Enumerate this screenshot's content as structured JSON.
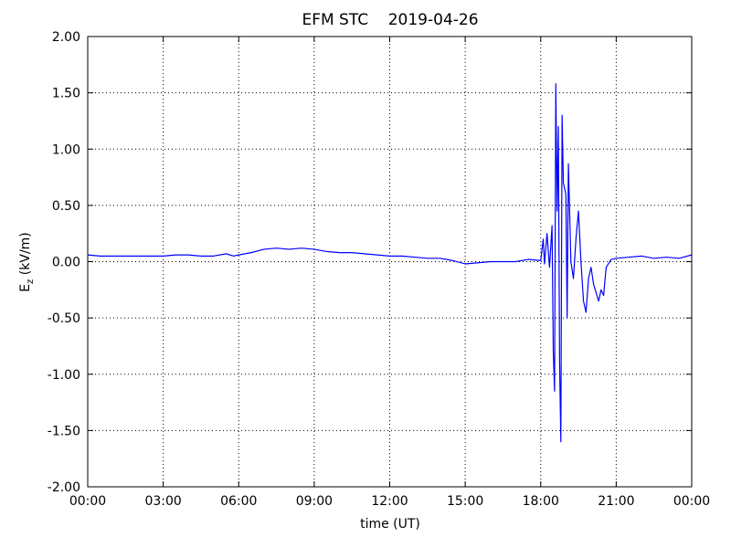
{
  "chart_data": {
    "type": "line",
    "title": "EFM STC    2019-04-26",
    "xlabel": "time (UT)",
    "ylabel": "E",
    "ylabel_sub": "z",
    "ylabel_unit": "(kV/m)",
    "x": [
      0,
      0.5,
      1,
      1.5,
      2,
      2.5,
      3,
      3.5,
      4,
      4.5,
      5,
      5.5,
      5.8,
      6,
      6.5,
      7,
      7.5,
      8,
      8.5,
      9,
      9.5,
      10,
      10.5,
      11,
      11.5,
      12,
      12.5,
      13,
      13.5,
      14,
      14.5,
      15,
      15.5,
      16,
      16.5,
      17,
      17.5,
      18,
      18.1,
      18.15,
      18.25,
      18.35,
      18.45,
      18.5,
      18.55,
      18.6,
      18.65,
      18.7,
      18.75,
      18.8,
      18.85,
      18.9,
      19.0,
      19.05,
      19.1,
      19.2,
      19.3,
      19.4,
      19.5,
      19.6,
      19.7,
      19.8,
      19.9,
      20.0,
      20.1,
      20.3,
      20.4,
      20.5,
      20.6,
      20.8,
      21,
      21.5,
      22,
      22.5,
      23,
      23.5,
      24
    ],
    "series": [
      {
        "name": "Ez",
        "color": "#0000ff",
        "values": [
          0.06,
          0.05,
          0.05,
          0.05,
          0.05,
          0.05,
          0.05,
          0.06,
          0.06,
          0.05,
          0.05,
          0.07,
          0.05,
          0.06,
          0.08,
          0.11,
          0.12,
          0.11,
          0.12,
          0.11,
          0.09,
          0.08,
          0.08,
          0.07,
          0.06,
          0.05,
          0.05,
          0.04,
          0.03,
          0.03,
          0.01,
          -0.02,
          -0.01,
          0.0,
          0.0,
          0.0,
          0.02,
          0.01,
          0.2,
          -0.02,
          0.25,
          -0.05,
          0.32,
          -0.8,
          -1.15,
          1.58,
          0.45,
          1.2,
          -0.9,
          -1.6,
          1.3,
          0.7,
          0.6,
          -0.5,
          0.87,
          0.0,
          -0.15,
          0.2,
          0.45,
          0.0,
          -0.35,
          -0.45,
          -0.15,
          -0.05,
          -0.2,
          -0.35,
          -0.25,
          -0.3,
          -0.05,
          0.02,
          0.03,
          0.04,
          0.05,
          0.03,
          0.04,
          0.03,
          0.06
        ]
      }
    ],
    "xlim": [
      0,
      24
    ],
    "xticks": [
      {
        "value": 0,
        "label": "00:00"
      },
      {
        "value": 3,
        "label": "03:00"
      },
      {
        "value": 6,
        "label": "06:00"
      },
      {
        "value": 9,
        "label": "09:00"
      },
      {
        "value": 12,
        "label": "12:00"
      },
      {
        "value": 15,
        "label": "15:00"
      },
      {
        "value": 18,
        "label": "18:00"
      },
      {
        "value": 21,
        "label": "21:00"
      },
      {
        "value": 24,
        "label": "00:00"
      }
    ],
    "ylim": [
      -2,
      2
    ],
    "yticks": [
      {
        "value": -2,
        "label": "-2.00"
      },
      {
        "value": -1.5,
        "label": "-1.50"
      },
      {
        "value": -1,
        "label": "-1.00"
      },
      {
        "value": -0.5,
        "label": "-0.50"
      },
      {
        "value": 0,
        "label": "0.00"
      },
      {
        "value": 0.5,
        "label": "0.50"
      },
      {
        "value": 1,
        "label": "1.00"
      },
      {
        "value": 1.5,
        "label": "1.50"
      },
      {
        "value": 2,
        "label": "2.00"
      }
    ],
    "grid": true
  }
}
